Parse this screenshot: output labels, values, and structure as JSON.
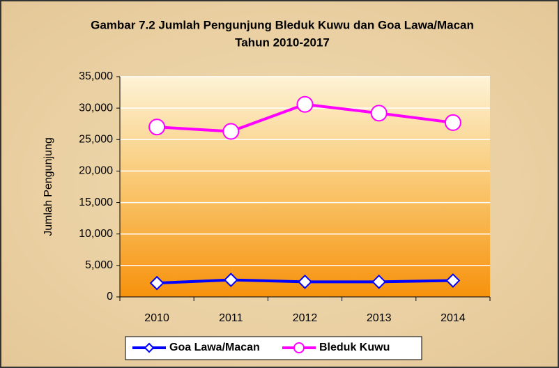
{
  "chart_data": {
    "type": "line",
    "title": [
      "Gambar 7.2 Jumlah Pengunjung Bleduk Kuwu dan Goa Lawa/Macan",
      "Tahun 2010-2017"
    ],
    "y_label": "Jumlah Pengunjung",
    "categories": [
      "2010",
      "2011",
      "2012",
      "2013",
      "2014"
    ],
    "series": [
      {
        "name": "Goa Lawa/Macan",
        "color": "#0000ff",
        "marker": "diamond",
        "values": [
          2200,
          2700,
          2400,
          2400,
          2600
        ]
      },
      {
        "name": "Bleduk Kuwu",
        "color": "#ff00ff",
        "marker": "circle",
        "values": [
          27000,
          26300,
          30600,
          29200,
          27700
        ]
      }
    ],
    "ylim": [
      0,
      35000
    ],
    "yticks": [
      0,
      {
        "value": 5000,
        "label": "5,000"
      },
      {
        "value": 10000,
        "label": "10,000"
      },
      {
        "value": 15000,
        "label": "15,000"
      },
      {
        "value": 20000,
        "label": "20,000"
      },
      {
        "value": 25000,
        "label": "25,000"
      },
      {
        "value": 30000,
        "label": "30,000"
      },
      {
        "value": 35000,
        "label": "35,000"
      }
    ],
    "grid": true,
    "legend": "bottom"
  }
}
